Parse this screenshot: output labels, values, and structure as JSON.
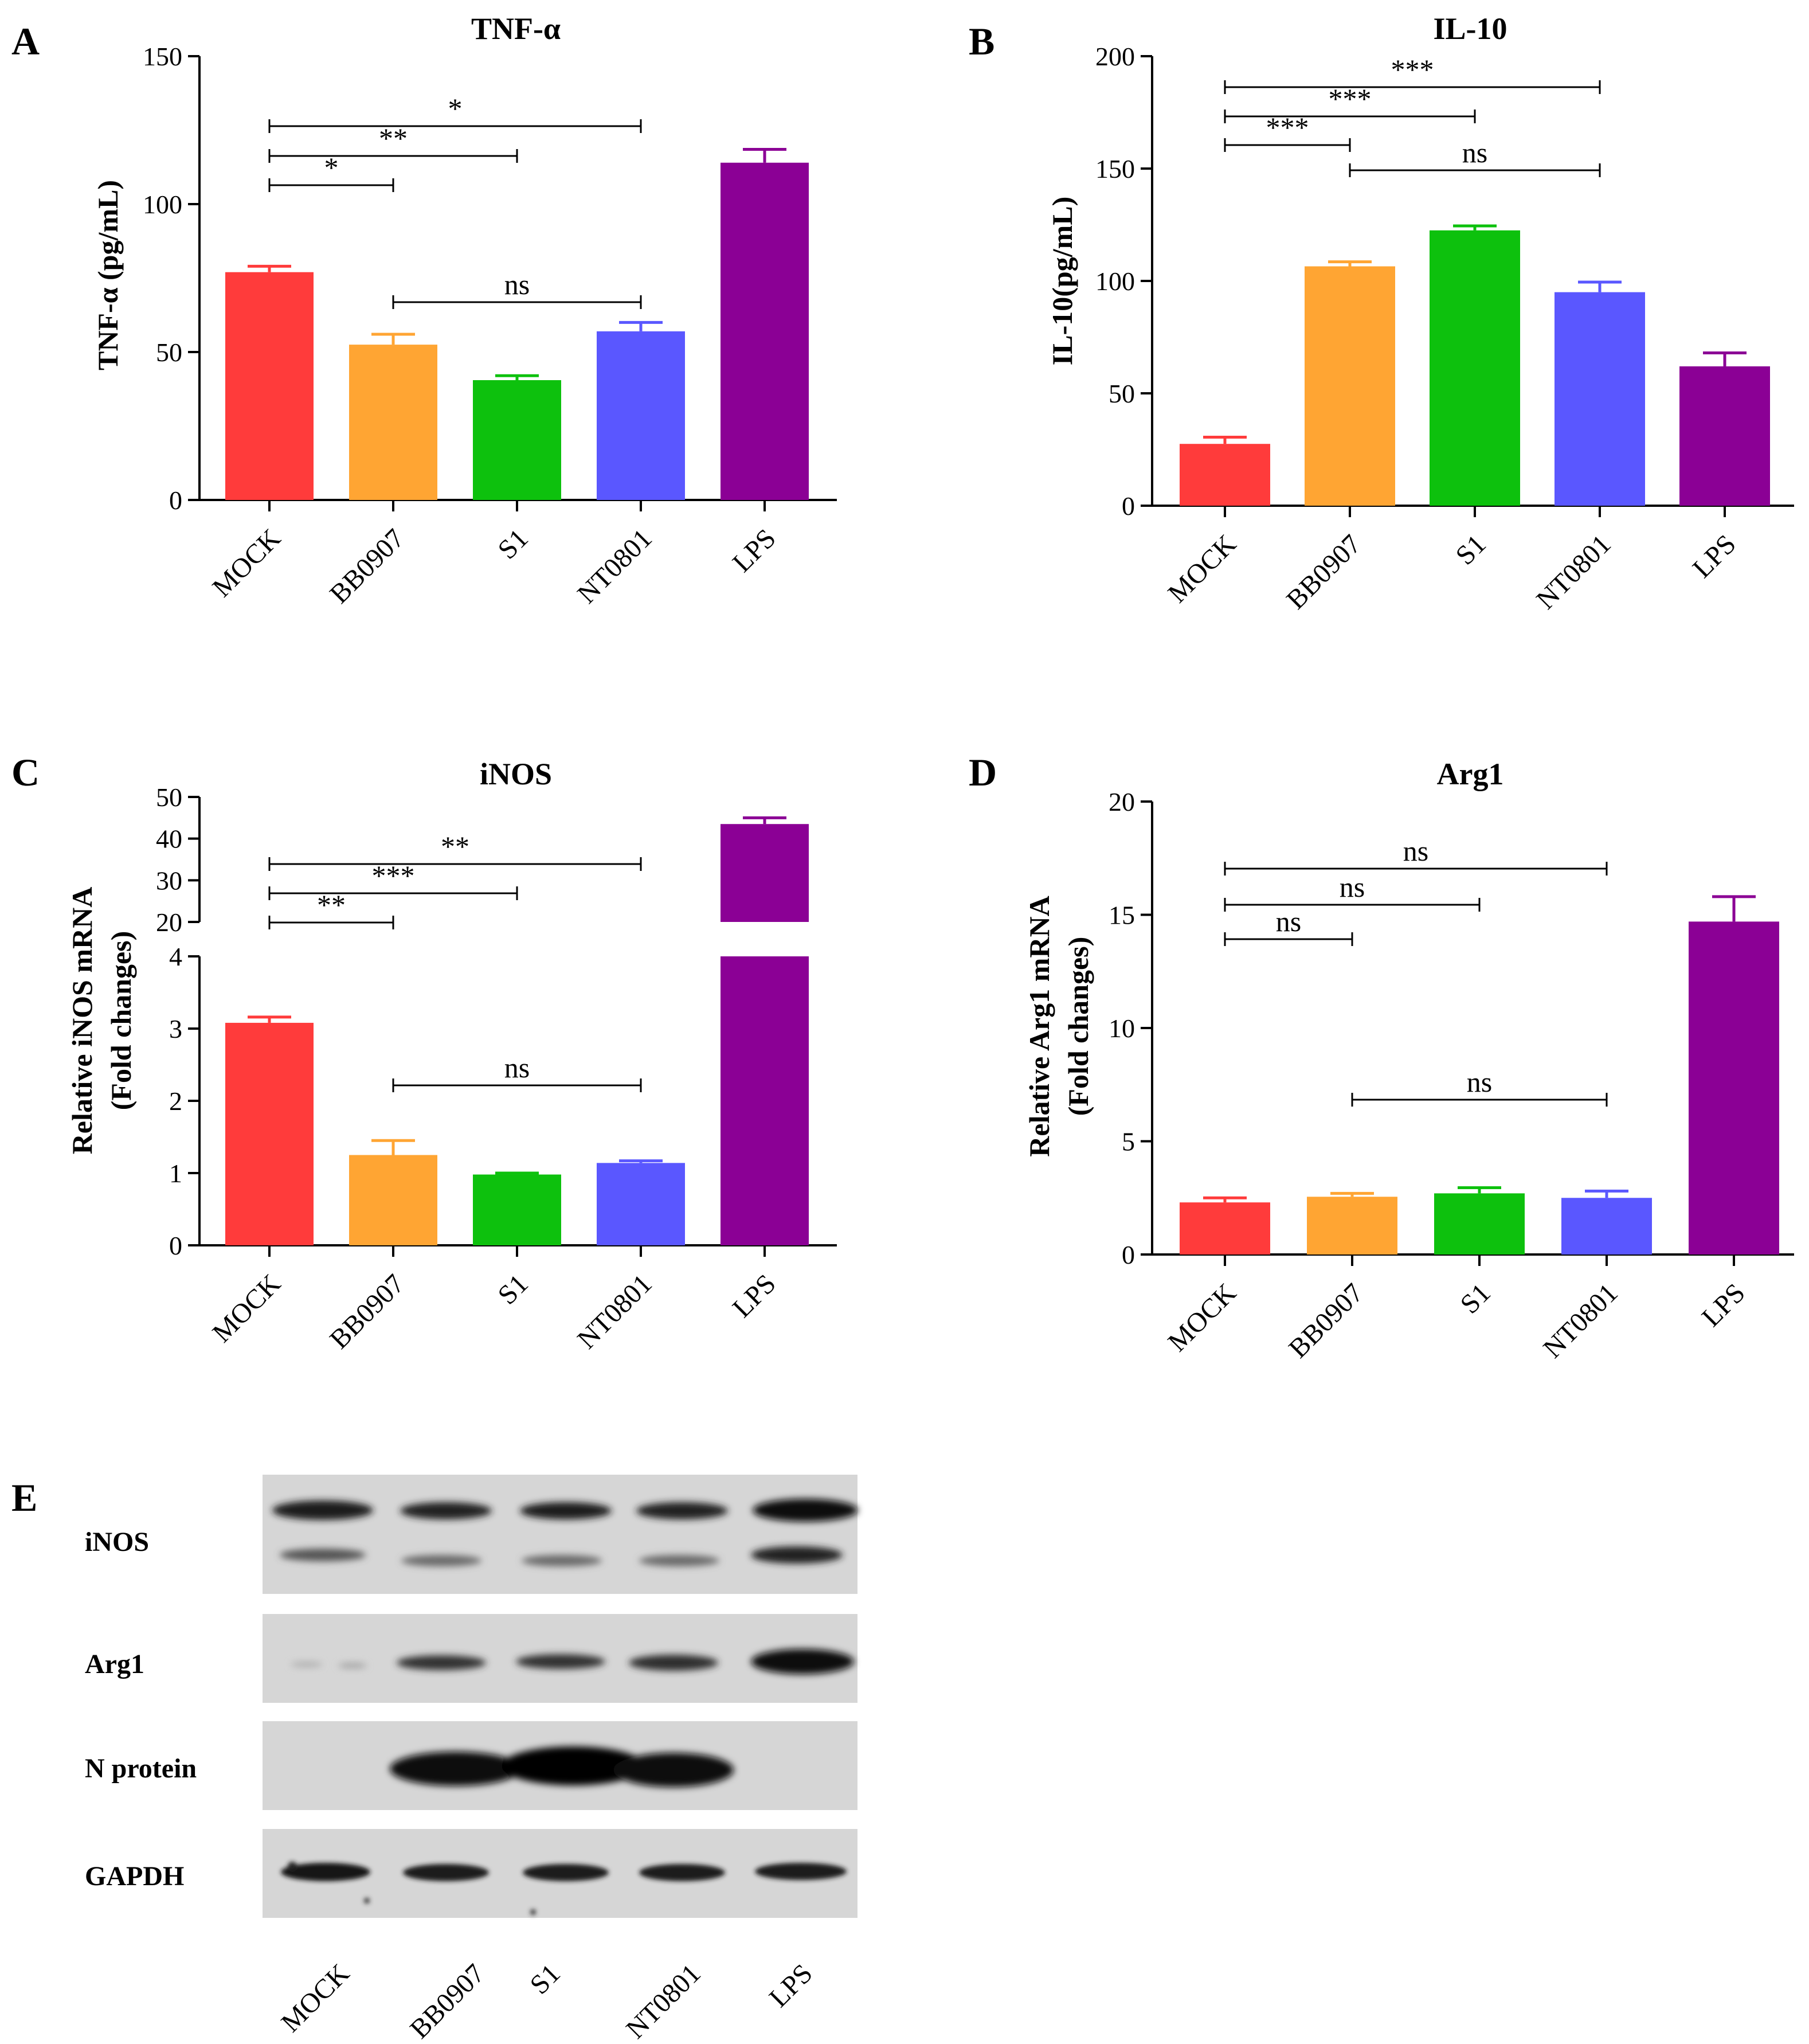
{
  "chart_data": [
    {
      "id": "A",
      "type": "bar",
      "title": "TNF-α",
      "ylabel": "TNF-α (pg/mL)",
      "categories": [
        "MOCK",
        "BB0907",
        "S1",
        "NT0801",
        "LPS"
      ],
      "values": [
        77,
        52.5,
        40.5,
        57,
        114
      ],
      "errors": [
        2,
        3.5,
        1.5,
        3,
        4.5
      ],
      "ylim": [
        0,
        150
      ],
      "yticks": [
        0,
        50,
        100,
        150
      ],
      "colors": [
        "#FF3B3B",
        "#FFA533",
        "#0DC10D",
        "#5A57FF",
        "#8B0095"
      ],
      "significance": [
        {
          "from": 0,
          "to": 1,
          "label": "*"
        },
        {
          "from": 0,
          "to": 2,
          "label": "**"
        },
        {
          "from": 0,
          "to": 3,
          "label": "*"
        },
        {
          "from": 1,
          "to": 3,
          "label": "ns"
        }
      ]
    },
    {
      "id": "B",
      "type": "bar",
      "title": "IL-10",
      "ylabel": "IL-10(pg/mL)",
      "categories": [
        "MOCK",
        "BB0907",
        "S1",
        "NT0801",
        "LPS"
      ],
      "values": [
        27.5,
        106.5,
        122.5,
        95,
        62
      ],
      "errors": [
        3,
        2,
        2,
        4.5,
        6
      ],
      "ylim": [
        0,
        200
      ],
      "yticks": [
        0,
        50,
        100,
        150,
        200
      ],
      "colors": [
        "#FF3B3B",
        "#FFA533",
        "#0DC10D",
        "#5A57FF",
        "#8B0095"
      ],
      "significance": [
        {
          "from": 0,
          "to": 1,
          "label": "***"
        },
        {
          "from": 0,
          "to": 2,
          "label": "***"
        },
        {
          "from": 0,
          "to": 3,
          "label": "***"
        },
        {
          "from": 1,
          "to": 3,
          "label": "ns"
        }
      ]
    },
    {
      "id": "C",
      "type": "bar",
      "title": "iNOS",
      "ylabel_line1": "Relative iNOS mRNA",
      "ylabel_line2": "(Fold changes)",
      "categories": [
        "MOCK",
        "BB0907",
        "S1",
        "NT0801",
        "LPS"
      ],
      "values": [
        3.08,
        1.25,
        0.98,
        1.14,
        43.5
      ],
      "errors": [
        0.08,
        0.2,
        0.02,
        0.03,
        1.5
      ],
      "ylim_lower": [
        0,
        4
      ],
      "ylim_upper": [
        20,
        50
      ],
      "yticks_lower": [
        0,
        1,
        2,
        3,
        4
      ],
      "yticks_upper": [
        20,
        30,
        40,
        50
      ],
      "colors": [
        "#FF3B3B",
        "#FFA533",
        "#0DC10D",
        "#5A57FF",
        "#8B0095"
      ],
      "significance": [
        {
          "from": 0,
          "to": 1,
          "label": "**"
        },
        {
          "from": 0,
          "to": 2,
          "label": "***"
        },
        {
          "from": 0,
          "to": 3,
          "label": "**"
        },
        {
          "from": 1,
          "to": 3,
          "label": "ns"
        }
      ]
    },
    {
      "id": "D",
      "type": "bar",
      "title": "Arg1",
      "ylabel_line1": "Relative Arg1 mRNA",
      "ylabel_line2": "(Fold changes)",
      "categories": [
        "MOCK",
        "BB0907",
        "S1",
        "NT0801",
        "LPS"
      ],
      "values": [
        2.3,
        2.55,
        2.7,
        2.5,
        14.7
      ],
      "errors": [
        0.2,
        0.15,
        0.25,
        0.3,
        1.1
      ],
      "ylim": [
        0,
        20
      ],
      "yticks": [
        0,
        5,
        10,
        15,
        20
      ],
      "colors": [
        "#FF3B3B",
        "#FFA533",
        "#0DC10D",
        "#5A57FF",
        "#8B0095"
      ],
      "significance": [
        {
          "from": 0,
          "to": 1,
          "label": "ns"
        },
        {
          "from": 0,
          "to": 2,
          "label": "ns"
        },
        {
          "from": 0,
          "to": 3,
          "label": "ns"
        },
        {
          "from": 1,
          "to": 3,
          "label": "ns"
        }
      ]
    }
  ],
  "blot": {
    "id": "E",
    "rows": [
      "iNOS",
      "Arg1",
      "N protein",
      "GAPDH"
    ],
    "lanes": [
      "MOCK",
      "BB0907",
      "S1",
      "NT0801",
      "LPS"
    ]
  }
}
